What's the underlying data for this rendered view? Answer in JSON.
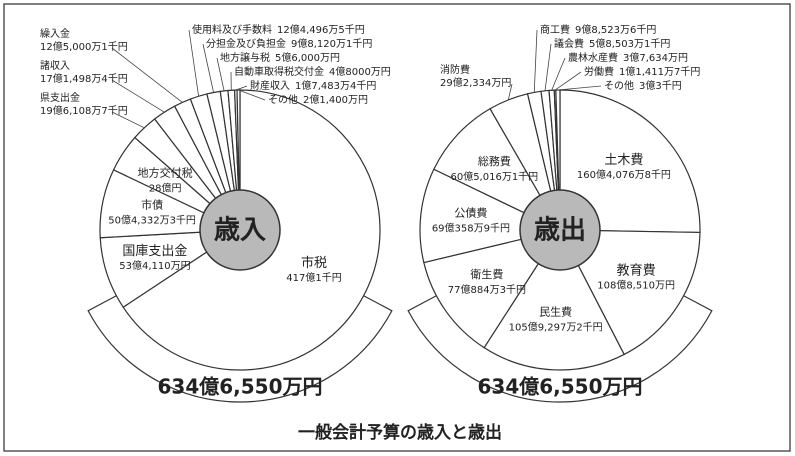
{
  "title": "一般会計予算の歳入と歳出",
  "chart_data": [
    {
      "type": "pie",
      "title": "歳入",
      "total": "634億6,550万円",
      "color": "#ffffff",
      "categories": [
        "市税",
        "国庫支出金",
        "市債",
        "地方交付税",
        "県支出金",
        "諸収入",
        "繰入金",
        "使用料及び手数料",
        "分担金及び負担金",
        "地方譲与税",
        "自動車取得税交付金",
        "財産収入",
        "その他"
      ],
      "values": [
        4170000.1,
        534110,
        504332.3,
        280000,
        196108.7,
        171498.4,
        125000.1,
        124496.5,
        98120.1,
        56000,
        48000,
        17483.4,
        21400
      ],
      "value_labels": [
        "417億1千円",
        "53億4,110万円",
        "50億4,332万3千円",
        "28億円",
        "19億6,108万7千円",
        "17億1,498万4千円",
        "12億5,000万1千円",
        "12億4,496万5千円",
        "9億8,120万1千円",
        "5億6,000万円",
        "4億8000万円",
        "1億7,483万4千円",
        "2億1,400万円"
      ]
    },
    {
      "type": "pie",
      "title": "歳出",
      "total": "634億6,550万円",
      "color": "#ffffff",
      "categories": [
        "土木費",
        "教育費",
        "民生費",
        "衛生費",
        "公債費",
        "総務費",
        "消防費",
        "商工費",
        "議会費",
        "農林水産費",
        "労働費",
        "その他"
      ],
      "values": [
        1604076.8,
        1088510,
        1059297.2,
        770884.3,
        690358.9,
        605016.1,
        292334,
        98523.6,
        58503.1,
        37634,
        11411.7,
        30000.3
      ],
      "value_labels": [
        "160億4,076万8千円",
        "108億8,510万円",
        "105億9,297万2千円",
        "77億884万3千円",
        "69億358万9千円",
        "60億5,016万1千円",
        "29億2,334万円",
        "9億8,523万6千円",
        "5億8,503万1千円",
        "3億7,634万円",
        "1億1,411万7千円",
        "3億3千円"
      ]
    }
  ]
}
